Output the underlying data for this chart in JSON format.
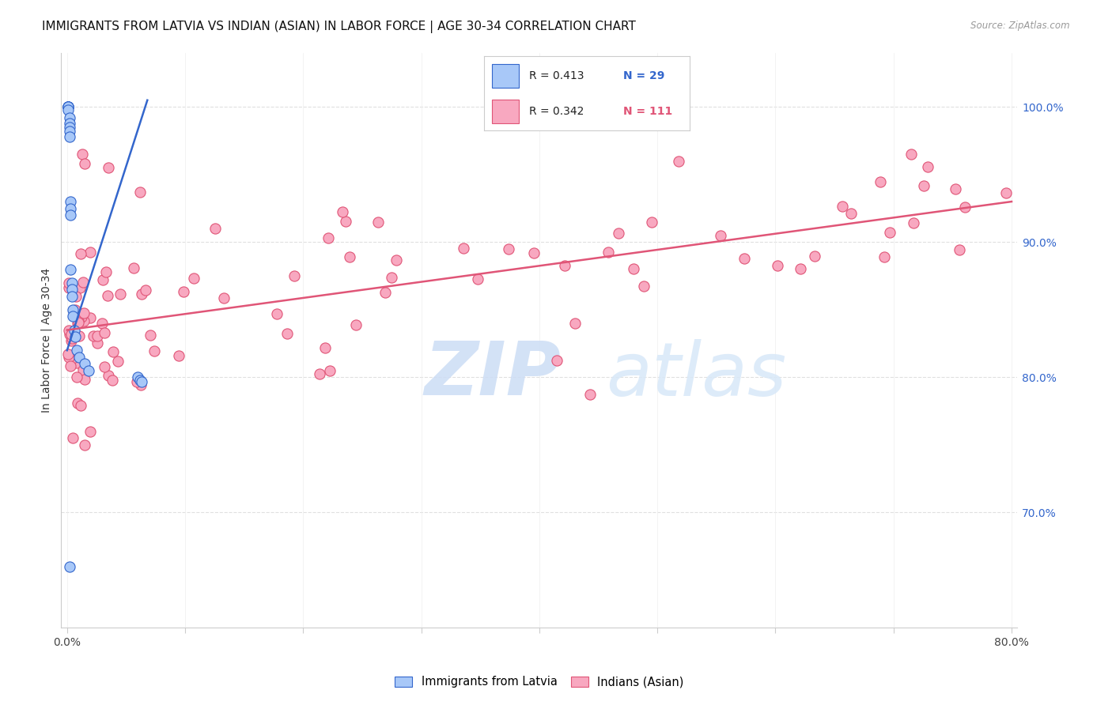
{
  "title": "IMMIGRANTS FROM LATVIA VS INDIAN (ASIAN) IN LABOR FORCE | AGE 30-34 CORRELATION CHART",
  "source_text": "Source: ZipAtlas.com",
  "ylabel": "In Labor Force | Age 30-34",
  "right_yticks": [
    0.7,
    0.8,
    0.9,
    1.0
  ],
  "right_yticklabels": [
    "70.0%",
    "80.0%",
    "90.0%",
    "100.0%"
  ],
  "xlim": [
    -0.005,
    0.805
  ],
  "ylim": [
    0.615,
    1.04
  ],
  "legend_r1": "R = 0.413",
  "legend_n1": "N = 29",
  "legend_r2": "R = 0.342",
  "legend_n2": "N = 111",
  "label1": "Immigrants from Latvia",
  "label2": "Indians (Asian)",
  "color1": "#a8c8f8",
  "color2": "#f8a8c0",
  "line1_color": "#3366cc",
  "line2_color": "#e05577",
  "text_color_blue": "#3366cc",
  "text_color_pink": "#e05577",
  "watermark": "ZIPatlas",
  "watermark_color_zip": "#c8dff5",
  "watermark_color_atlas": "#c8dff5",
  "background_color": "#ffffff",
  "grid_color": "#e0e0e0",
  "latvia_x": [
    0.001,
    0.001,
    0.001,
    0.001,
    0.001,
    0.002,
    0.002,
    0.002,
    0.002,
    0.002,
    0.003,
    0.003,
    0.003,
    0.003,
    0.004,
    0.004,
    0.004,
    0.005,
    0.005,
    0.006,
    0.007,
    0.008,
    0.01,
    0.015,
    0.018,
    0.06,
    0.062,
    0.063,
    0.002
  ],
  "latvia_y": [
    1.0,
    1.0,
    1.0,
    1.0,
    0.998,
    0.992,
    0.988,
    0.985,
    0.982,
    0.978,
    0.93,
    0.925,
    0.92,
    0.88,
    0.87,
    0.865,
    0.86,
    0.85,
    0.845,
    0.835,
    0.83,
    0.82,
    0.815,
    0.81,
    0.805,
    0.8,
    0.798,
    0.797,
    0.66
  ],
  "latvia_trend_x": [
    0.0,
    0.068
  ],
  "latvia_trend_y": [
    0.82,
    1.005
  ],
  "indian_trend_x": [
    0.0,
    0.8
  ],
  "indian_trend_y": [
    0.835,
    0.93
  ]
}
